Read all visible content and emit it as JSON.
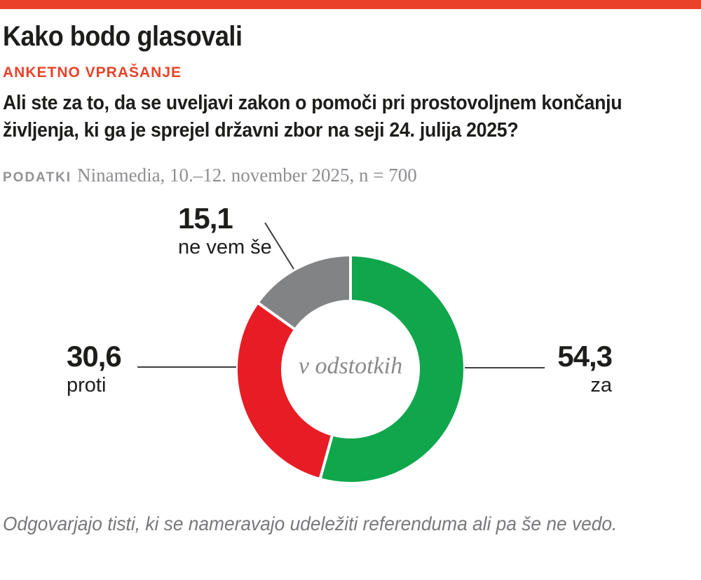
{
  "accent_color": "#e8432a",
  "header": {
    "title": "Kako bodo glasovali",
    "kicker": "ANKETNO VPRAŠANJE",
    "question": "Ali ste za to, da se uveljavi zakon o pomoči pri prostovoljnem končanju življenja, ki ga je sprejel državni zbor na seji 24. julija 2025?",
    "source_label": "PODATKI",
    "source_text": "Ninamedia, 10.–12. november 2025, n = 700"
  },
  "chart_data": {
    "type": "pie",
    "variant": "donut",
    "unit": "percent",
    "center_label": "v odstotkih",
    "start_angle_deg": 0,
    "direction": "clockwise",
    "separator_color": "#ffffff",
    "slices": [
      {
        "label": "za",
        "value": 54.3,
        "display_value": "54,3",
        "color": "#0fa64c"
      },
      {
        "label": "proti",
        "value": 30.6,
        "display_value": "30,6",
        "color": "#e81c24"
      },
      {
        "label": "ne vem še",
        "value": 15.1,
        "display_value": "15,1",
        "color": "#818385"
      }
    ]
  },
  "footer": {
    "note": "Odgovarjajo tisti, ki se nameravajo udeležiti referenduma ali pa še ne vedo."
  }
}
